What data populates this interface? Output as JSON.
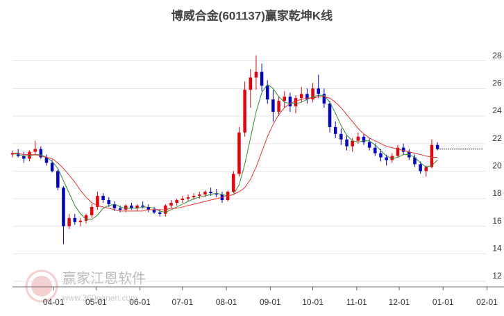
{
  "chart_data": {
    "type": "candlestick",
    "title": "博威合金(601137)赢家乾坤K线",
    "watermark": [
      "赢家江恩软件",
      "www.360ganen.com"
    ],
    "up_color": "#e8000b",
    "down_color": "#0000cc",
    "grid": true,
    "xlim": [
      -29,
      318
    ],
    "ylim": [
      11.6,
      30
    ],
    "xticks": [
      {
        "value": 0,
        "label": "04-01"
      },
      {
        "value": 30,
        "label": "05-01"
      },
      {
        "value": 61,
        "label": "06-01"
      },
      {
        "value": 91,
        "label": "07-01"
      },
      {
        "value": 122,
        "label": "08-01"
      },
      {
        "value": 153,
        "label": "09-01"
      },
      {
        "value": 183,
        "label": "10-01"
      },
      {
        "value": 214,
        "label": "11-01"
      },
      {
        "value": 244,
        "label": "12-01"
      },
      {
        "value": 275,
        "label": "01-01"
      },
      {
        "value": 306,
        "label": "02-01"
      }
    ],
    "yticks": [
      12,
      14,
      16,
      18,
      20,
      22,
      24,
      26,
      28
    ],
    "x": [
      -29,
      -25,
      -21,
      -17,
      -13,
      -9,
      -5,
      -1,
      3,
      7,
      11,
      15,
      19,
      23,
      27,
      31,
      35,
      39,
      43,
      47,
      51,
      55,
      59,
      63,
      67,
      71,
      75,
      79,
      83,
      87,
      91,
      95,
      99,
      103,
      107,
      111,
      115,
      119,
      123,
      127,
      131,
      135,
      139,
      143,
      147,
      151,
      155,
      159,
      163,
      167,
      171,
      175,
      179,
      183,
      187,
      191,
      195,
      199,
      203,
      207,
      211,
      215,
      219,
      223,
      227,
      231,
      235,
      239,
      243,
      247,
      251,
      255,
      259,
      263,
      267,
      271
    ],
    "open": [
      21.2,
      21.3,
      21.1,
      20.9,
      21.4,
      21.6,
      21.0,
      20.6,
      20.0,
      18.8,
      16.0,
      16.6,
      16.3,
      16.4,
      16.8,
      17.4,
      18.2,
      17.9,
      17.6,
      17.3,
      17.2,
      17.5,
      17.3,
      17.5,
      17.4,
      17.2,
      17.0,
      16.9,
      17.5,
      17.7,
      17.9,
      18.0,
      18.1,
      18.2,
      18.3,
      18.5,
      18.4,
      18.3,
      17.9,
      18.5,
      19.8,
      22.8,
      25.9,
      26.8,
      27.2,
      26.2,
      25.2,
      24.3,
      25.1,
      25.4,
      24.7,
      25.3,
      25.6,
      25.2,
      26.0,
      25.6,
      24.9,
      23.2,
      22.7,
      22.3,
      21.8,
      22.2,
      22.5,
      22.1,
      21.7,
      21.3,
      21.0,
      20.8,
      21.1,
      21.7,
      21.4,
      21.0,
      20.5,
      20.0,
      20.3,
      21.9
    ],
    "high": [
      21.5,
      21.6,
      21.4,
      21.5,
      22.2,
      21.8,
      21.2,
      20.8,
      20.1,
      18.9,
      16.9,
      16.9,
      16.6,
      16.9,
      17.6,
      18.5,
      18.4,
      18.1,
      17.8,
      17.5,
      17.6,
      17.7,
      17.6,
      17.8,
      17.6,
      17.4,
      17.2,
      17.6,
      17.9,
      18.0,
      18.2,
      18.3,
      18.4,
      18.5,
      18.6,
      18.8,
      18.7,
      18.5,
      18.6,
      20.0,
      23.2,
      26.5,
      27.4,
      28.4,
      27.8,
      26.6,
      25.9,
      25.4,
      25.8,
      25.7,
      25.5,
      26.1,
      26.0,
      26.4,
      27.0,
      26.0,
      25.1,
      23.6,
      23.1,
      22.6,
      22.4,
      22.8,
      22.7,
      22.4,
      22.0,
      21.6,
      21.2,
      21.3,
      21.9,
      22.0,
      21.6,
      21.2,
      20.7,
      20.4,
      22.3,
      22.1
    ],
    "low": [
      21.0,
      21.0,
      20.6,
      20.7,
      21.1,
      20.9,
      20.4,
      19.9,
      18.6,
      14.7,
      15.8,
      16.1,
      16.0,
      16.2,
      16.6,
      17.2,
      17.7,
      17.4,
      17.1,
      17.0,
      17.0,
      17.2,
      17.1,
      17.3,
      17.0,
      16.9,
      16.7,
      16.7,
      17.3,
      17.5,
      17.7,
      17.8,
      17.9,
      18.0,
      18.1,
      18.2,
      18.1,
      17.7,
      17.8,
      18.4,
      19.6,
      22.5,
      24.6,
      25.9,
      25.8,
      24.9,
      23.6,
      24.0,
      24.6,
      24.3,
      24.2,
      25.0,
      24.9,
      25.0,
      25.3,
      24.6,
      22.8,
      22.4,
      21.9,
      21.5,
      21.4,
      22.0,
      21.9,
      21.5,
      21.1,
      20.7,
      20.4,
      20.6,
      21.0,
      21.2,
      20.8,
      20.3,
      19.8,
      19.6,
      20.2,
      21.5
    ],
    "close": [
      21.3,
      21.1,
      20.9,
      21.4,
      21.6,
      21.0,
      20.6,
      20.0,
      18.8,
      16.0,
      16.6,
      16.3,
      16.4,
      16.8,
      17.4,
      18.2,
      17.9,
      17.6,
      17.3,
      17.2,
      17.5,
      17.3,
      17.5,
      17.4,
      17.2,
      17.0,
      16.9,
      17.5,
      17.7,
      17.9,
      18.0,
      18.1,
      18.2,
      18.3,
      18.5,
      18.4,
      18.3,
      17.9,
      18.5,
      19.8,
      22.8,
      25.9,
      26.8,
      27.2,
      26.2,
      25.2,
      24.3,
      25.1,
      25.4,
      24.7,
      25.3,
      25.6,
      25.2,
      26.0,
      25.6,
      24.9,
      23.2,
      22.7,
      22.3,
      21.8,
      22.2,
      22.5,
      22.1,
      21.7,
      21.3,
      21.0,
      20.8,
      21.1,
      21.7,
      21.4,
      21.0,
      20.5,
      20.0,
      20.3,
      21.9,
      21.6
    ],
    "series": [
      {
        "color": "#2e8b2e",
        "values": [
          21.3,
          21.2,
          21.1,
          21.1,
          21.2,
          21.2,
          21.0,
          20.7,
          20.2,
          19.3,
          18.4,
          17.5,
          16.9,
          16.5,
          16.5,
          16.8,
          17.3,
          17.5,
          17.6,
          17.4,
          17.3,
          17.3,
          17.3,
          17.4,
          17.4,
          17.3,
          17.1,
          17.0,
          17.2,
          17.4,
          17.6,
          17.8,
          18.0,
          18.1,
          18.2,
          18.3,
          18.4,
          18.3,
          18.2,
          18.3,
          19.0,
          20.5,
          22.4,
          24.3,
          25.7,
          26.3,
          26.0,
          25.4,
          25.0,
          24.9,
          24.9,
          25.0,
          25.2,
          25.4,
          25.5,
          25.5,
          25.0,
          24.2,
          23.3,
          22.6,
          22.2,
          22.1,
          22.2,
          22.2,
          21.9,
          21.5,
          21.1,
          20.9,
          21.0,
          21.2,
          21.2,
          21.0,
          20.6,
          20.3,
          20.4,
          20.8
        ]
      },
      {
        "color": "#e83030",
        "values": [
          21.3,
          21.3,
          21.2,
          21.2,
          21.2,
          21.1,
          21.0,
          20.9,
          20.6,
          20.2,
          19.7,
          19.2,
          18.6,
          18.1,
          17.7,
          17.5,
          17.4,
          17.3,
          17.2,
          17.1,
          17.1,
          17.1,
          17.1,
          17.1,
          17.2,
          17.2,
          17.2,
          17.2,
          17.3,
          17.3,
          17.4,
          17.5,
          17.6,
          17.7,
          17.8,
          17.9,
          18.0,
          18.1,
          18.2,
          18.3,
          18.5,
          18.8,
          19.4,
          20.3,
          21.4,
          22.5,
          23.4,
          24.1,
          24.6,
          24.9,
          25.1,
          25.2,
          25.3,
          25.3,
          25.4,
          25.4,
          25.3,
          25.0,
          24.6,
          24.1,
          23.6,
          23.1,
          22.7,
          22.4,
          22.2,
          22.0,
          21.8,
          21.7,
          21.6,
          21.5,
          21.4,
          21.3,
          21.2,
          21.1,
          21.0,
          21.0
        ]
      }
    ],
    "price_line": 21.6
  }
}
